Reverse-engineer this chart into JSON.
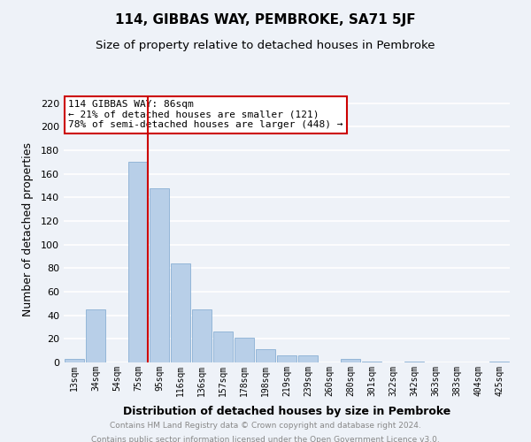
{
  "title": "114, GIBBAS WAY, PEMBROKE, SA71 5JF",
  "subtitle": "Size of property relative to detached houses in Pembroke",
  "xlabel": "Distribution of detached houses by size in Pembroke",
  "ylabel": "Number of detached properties",
  "footer1": "Contains HM Land Registry data © Crown copyright and database right 2024.",
  "footer2": "Contains public sector information licensed under the Open Government Licence v3.0.",
  "categories": [
    "13sqm",
    "34sqm",
    "54sqm",
    "75sqm",
    "95sqm",
    "116sqm",
    "136sqm",
    "157sqm",
    "178sqm",
    "198sqm",
    "219sqm",
    "239sqm",
    "260sqm",
    "280sqm",
    "301sqm",
    "322sqm",
    "342sqm",
    "363sqm",
    "383sqm",
    "404sqm",
    "425sqm"
  ],
  "values": [
    3,
    45,
    0,
    170,
    148,
    84,
    45,
    26,
    21,
    11,
    6,
    6,
    0,
    3,
    1,
    0,
    1,
    0,
    0,
    0,
    1
  ],
  "bar_color": "#b8cfe8",
  "bar_edge_color": "#8ab0d4",
  "vline_x_index": 3,
  "vline_color": "#cc0000",
  "annotation_title": "114 GIBBAS WAY: 86sqm",
  "annotation_line1": "← 21% of detached houses are smaller (121)",
  "annotation_line2": "78% of semi-detached houses are larger (448) →",
  "annotation_box_edgecolor": "#cc0000",
  "ylim": [
    0,
    225
  ],
  "yticks": [
    0,
    20,
    40,
    60,
    80,
    100,
    120,
    140,
    160,
    180,
    200,
    220
  ],
  "background_color": "#eef2f8",
  "plot_bg_color": "#eef2f8",
  "grid_color": "#ffffff",
  "title_fontsize": 11,
  "subtitle_fontsize": 9.5,
  "footer_color": "#888888"
}
